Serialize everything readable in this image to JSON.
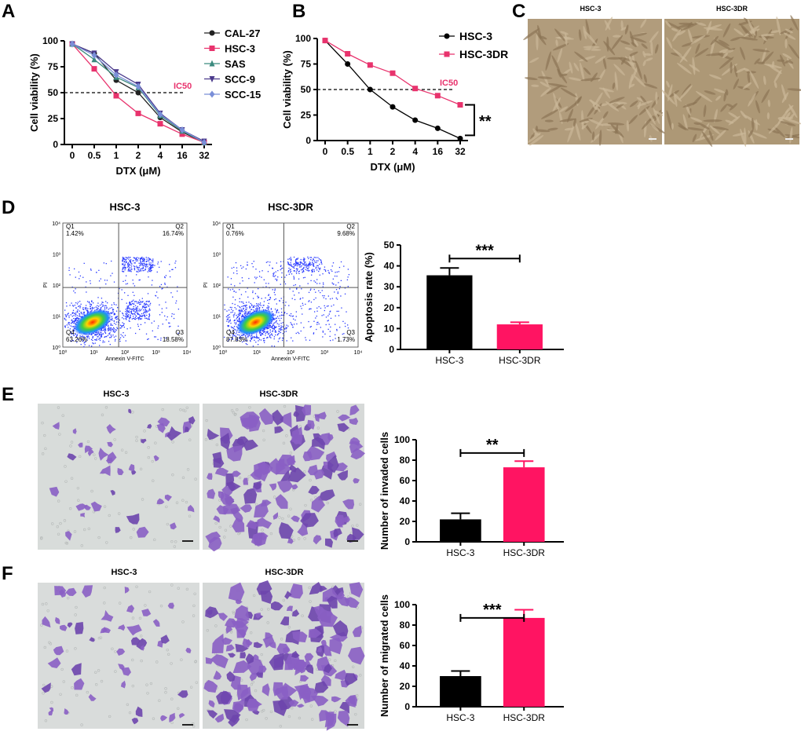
{
  "panels": {
    "A": {
      "label": "A",
      "ic50_label": "IC50",
      "chart_data": {
        "type": "line",
        "title": "",
        "xlabel": "DTX (μM)",
        "ylabel": "Cell viability (%)",
        "categories": [
          "0",
          "0.5",
          "1",
          "2",
          "4",
          "16",
          "32"
        ],
        "ylim": [
          0,
          100
        ],
        "yticks": [
          0,
          25,
          50,
          75,
          100
        ],
        "reference_line": 50,
        "series": [
          {
            "name": "CAL-27",
            "color": "#222222",
            "marker": "circle",
            "values": [
              97,
              88,
              62,
              50,
              26,
              12,
              2
            ]
          },
          {
            "name": "HSC-3",
            "color": "#e8336d",
            "marker": "square",
            "values": [
              97,
              73,
              47,
              30,
              20,
              10,
              2
            ]
          },
          {
            "name": "SAS",
            "color": "#3b8a7e",
            "marker": "triangle-up",
            "values": [
              97,
              82,
              65,
              55,
              28,
              13,
              2
            ]
          },
          {
            "name": "SCC-9",
            "color": "#4b3a8c",
            "marker": "triangle-down",
            "values": [
              97,
              88,
              70,
              58,
              30,
              14,
              3
            ]
          },
          {
            "name": "SCC-15",
            "color": "#7a8fd8",
            "marker": "diamond",
            "values": [
              97,
              86,
              67,
              56,
              29,
              14,
              2
            ]
          }
        ]
      }
    },
    "B": {
      "label": "B",
      "ic50_label": "IC50",
      "significance": "**",
      "chart_data": {
        "type": "line",
        "title": "",
        "xlabel": "DTX (μM)",
        "ylabel": "Cell viability (%)",
        "categories": [
          "0",
          "0.5",
          "1",
          "2",
          "4",
          "16",
          "32"
        ],
        "ylim": [
          0,
          100
        ],
        "yticks": [
          0,
          25,
          50,
          75,
          100
        ],
        "reference_line": 50,
        "series": [
          {
            "name": "HSC-3",
            "color": "#000000",
            "marker": "circle",
            "values": [
              98,
              75,
              50,
              33,
              20,
              12,
              2
            ]
          },
          {
            "name": "HSC-3DR",
            "color": "#e8336d",
            "marker": "square",
            "values": [
              98,
              85,
              74,
              66,
              51,
              44,
              35
            ]
          }
        ]
      }
    },
    "C": {
      "label": "C",
      "images": [
        {
          "title": "HSC-3"
        },
        {
          "title": "HSC-3DR"
        }
      ]
    },
    "D": {
      "label": "D",
      "flow": [
        {
          "title": "HSC-3",
          "q1_name": "Q1",
          "q1": "1.42%",
          "q2_name": "Q2",
          "q2": "16.74%",
          "q3_name": "Q3",
          "q3": "18.58%",
          "q4_name": "Q4",
          "q4": "63.26%",
          "xlabel": "Annexin V-FITC",
          "ylabel": "PI"
        },
        {
          "title": "HSC-3DR",
          "q1_name": "Q1",
          "q1": "0.76%",
          "q2_name": "Q2",
          "q2": "9.68%",
          "q3_name": "Q3",
          "q3": "1.73%",
          "q4_name": "Q4",
          "q4": "87.83%",
          "xlabel": "Annexin V-FITC",
          "ylabel": "PI"
        }
      ],
      "flow_ticks": [
        "10⁰",
        "10¹",
        "10²",
        "10³",
        "10⁴"
      ],
      "chart_data": {
        "type": "bar",
        "title": "",
        "xlabel": "",
        "ylabel": "Apoptosis rate (%)",
        "categories": [
          "HSC-3",
          "HSC-3DR"
        ],
        "values": [
          35.5,
          12
        ],
        "errors": [
          3.5,
          1
        ],
        "colors": [
          "#000000",
          "#ff1462"
        ],
        "ylim": [
          0,
          50
        ],
        "yticks": [
          0,
          10,
          20,
          30,
          40,
          50
        ],
        "significance": "***"
      }
    },
    "E": {
      "label": "E",
      "images": [
        {
          "title": "HSC-3"
        },
        {
          "title": "HSC-3DR"
        }
      ],
      "chart_data": {
        "type": "bar",
        "title": "",
        "xlabel": "",
        "ylabel": "Number of invaded cells",
        "categories": [
          "HSC-3",
          "HSC-3DR"
        ],
        "values": [
          22,
          73
        ],
        "errors": [
          6,
          6
        ],
        "colors": [
          "#000000",
          "#ff1462"
        ],
        "ylim": [
          0,
          100
        ],
        "yticks": [
          0,
          20,
          40,
          60,
          80,
          100
        ],
        "significance": "**"
      }
    },
    "F": {
      "label": "F",
      "images": [
        {
          "title": "HSC-3"
        },
        {
          "title": "HSC-3DR"
        }
      ],
      "chart_data": {
        "type": "bar",
        "title": "",
        "xlabel": "",
        "ylabel": "Number of migrated cells",
        "categories": [
          "HSC-3",
          "HSC-3DR"
        ],
        "values": [
          30,
          87
        ],
        "errors": [
          5,
          8
        ],
        "colors": [
          "#000000",
          "#ff1462"
        ],
        "ylim": [
          0,
          100
        ],
        "yticks": [
          0,
          20,
          40,
          60,
          80,
          100
        ],
        "significance": "***"
      }
    }
  }
}
